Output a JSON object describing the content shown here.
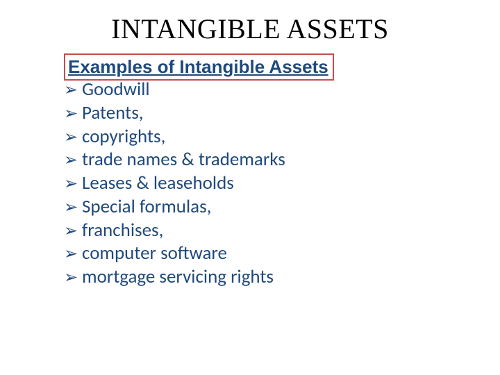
{
  "title": "INTANGIBLE ASSETS",
  "subtitle": "Examples of Intangible Assets",
  "bullet_glyph": "➢",
  "items": [
    "Goodwill",
    "Patents,",
    "copyrights,",
    "trade names & trademarks",
    "Leases & leaseholds",
    "Special formulas,",
    "franchises,",
    "computer software",
    "mortgage servicing rights"
  ],
  "colors": {
    "title_color": "#000000",
    "text_color": "#1f497d",
    "box_border": "#c0504d",
    "background": "#ffffff"
  },
  "typography": {
    "title_font": "Times New Roman",
    "title_size_pt": 30,
    "subtitle_font": "Arial",
    "subtitle_size_pt": 20,
    "subtitle_weight": "bold",
    "body_font": "Calibri",
    "body_size_pt": 20
  }
}
